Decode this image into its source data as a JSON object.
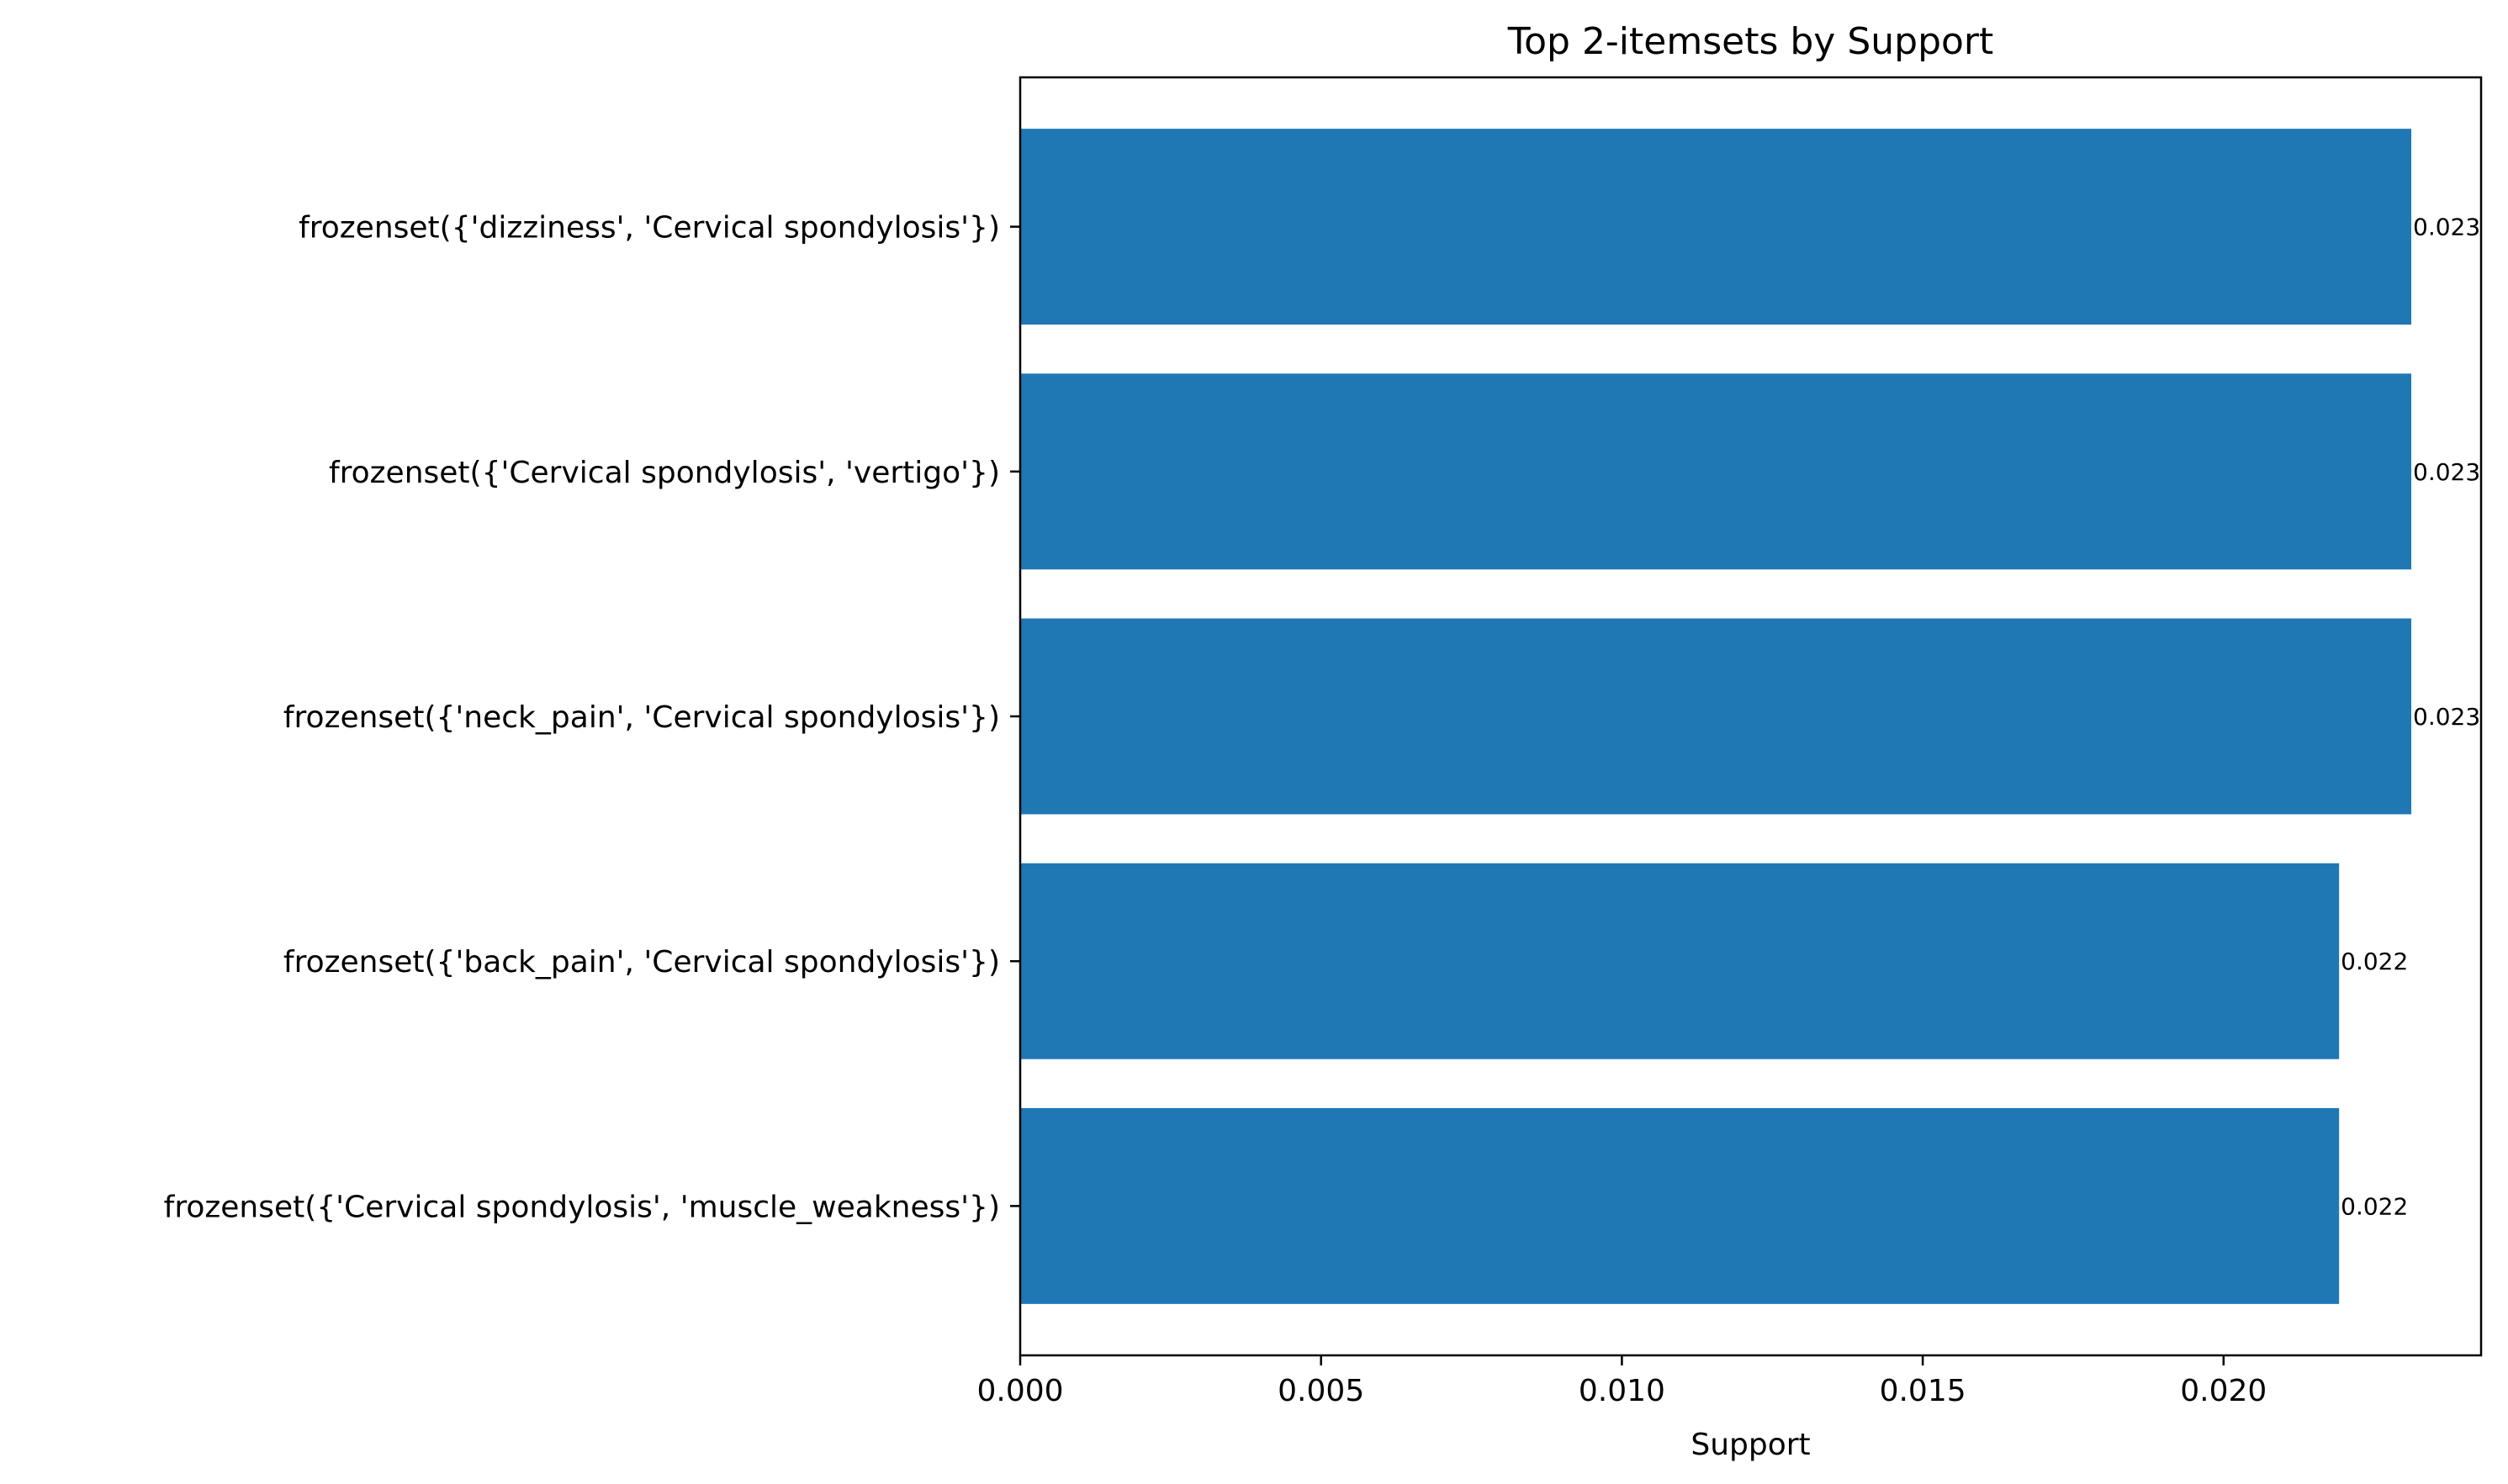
{
  "chart_data": {
    "type": "bar",
    "orientation": "horizontal",
    "title": "Top 2-itemsets by Support",
    "xlabel": "Support",
    "ylabel": "",
    "categories": [
      "frozenset({'dizziness', 'Cervical spondylosis'})",
      "frozenset({'Cervical spondylosis', 'vertigo'})",
      "frozenset({'neck_pain', 'Cervical spondylosis'})",
      "frozenset({'back_pain', 'Cervical spondylosis'})",
      "frozenset({'Cervical spondylosis', 'muscle_weakness'})"
    ],
    "values": [
      0.02312,
      0.02312,
      0.02312,
      0.02192,
      0.02192
    ],
    "data_labels": [
      "0.023",
      "0.023",
      "0.023",
      "0.022",
      "0.022"
    ],
    "xlim": [
      0,
      0.02428
    ],
    "xticks": [
      0.0,
      0.005,
      0.01,
      0.015,
      0.02
    ],
    "xtick_labels": [
      "0.000",
      "0.005",
      "0.010",
      "0.015",
      "0.020"
    ],
    "grid": false,
    "legend": "none",
    "bar_color": "#1f77b4"
  }
}
